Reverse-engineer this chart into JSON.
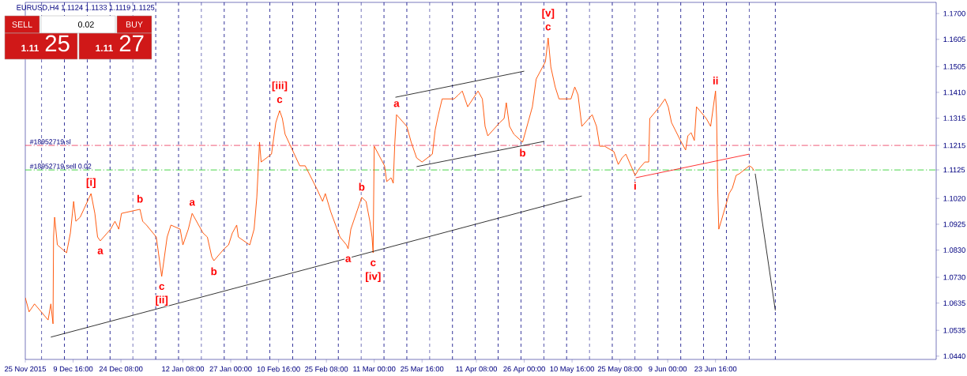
{
  "chart_data": {
    "type": "line",
    "title": "EURUSD,H4  1.1124 1.1133 1.1119 1.1125",
    "x": [
      "2015-11-25T00:00",
      "2015-11-26T04:00",
      "2015-11-27T20:00",
      "2015-12-02T00:00",
      "2015-12-02T20:00",
      "2015-12-03T12:00",
      "2015-12-03T16:00",
      "2015-12-04T00:00",
      "2015-12-04T20:00",
      "2015-12-07T16:00",
      "2015-12-08T20:00",
      "2015-12-09T20:00",
      "2015-12-10T12:00",
      "2015-12-11T20:00",
      "2015-12-15T04:00",
      "2015-12-16T08:00",
      "2015-12-17T04:00",
      "2015-12-18T00:00",
      "2015-12-21T04:00",
      "2015-12-22T12:00",
      "2015-12-23T16:00",
      "2015-12-24T12:00",
      "2015-12-30T04:00",
      "2015-12-31T00:00",
      "2016-01-01T04:00",
      "2016-01-04T04:00",
      "2016-01-04T20:00",
      "2016-01-05T20:00",
      "2016-01-06T12:00",
      "2016-01-07T12:00",
      "2016-01-08T16:00",
      "2016-01-11T12:00",
      "2016-01-12T08:00",
      "2016-01-14T00:00",
      "2016-01-15T04:00",
      "2016-01-18T12:00",
      "2016-01-19T20:00",
      "2016-01-21T04:00",
      "2016-01-21T20:00",
      "2016-01-25T00:00",
      "2016-01-26T08:00",
      "2016-01-27T12:00",
      "2016-01-28T20:00",
      "2016-01-29T08:00",
      "2016-02-01T20:00",
      "2016-02-03T04:00",
      "2016-02-04T00:00",
      "2016-02-04T20:00",
      "2016-02-05T08:00",
      "2016-02-08T12:00",
      "2016-02-09T20:00",
      "2016-02-11T00:00",
      "2016-02-11T20:00",
      "2016-02-12T16:00",
      "2016-02-15T12:00",
      "2016-02-17T04:00",
      "2016-02-18T20:00",
      "2016-02-22T12:00",
      "2016-02-24T04:00",
      "2016-02-25T00:00",
      "2016-02-26T16:00",
      "2016-02-29T12:00",
      "2016-03-02T12:00",
      "2016-03-03T00:00",
      "2016-03-03T20:00",
      "2016-03-07T04:00",
      "2016-03-08T12:00",
      "2016-03-09T16:00",
      "2016-03-10T08:00",
      "2016-03-10T16:00",
      "2016-03-11T00:00",
      "2016-03-14T04:00",
      "2016-03-14T20:00",
      "2016-03-16T04:00",
      "2016-03-16T20:00",
      "2016-03-17T08:00",
      "2016-03-17T20:00",
      "2016-03-21T00:00",
      "2016-03-22T08:00",
      "2016-03-24T00:00",
      "2016-03-25T16:00",
      "2016-03-28T20:00",
      "2016-03-29T16:00",
      "2016-03-30T16:00",
      "2016-03-31T20:00",
      "2016-04-04T12:00",
      "2016-04-05T20:00",
      "2016-04-07T00:00",
      "2016-04-08T16:00",
      "2016-04-11T20:00",
      "2016-04-13T04:00",
      "2016-04-14T00:00",
      "2016-04-14T20:00",
      "2016-04-18T12:00",
      "2016-04-19T20:00",
      "2016-04-20T12:00",
      "2016-04-21T12:00",
      "2016-04-22T20:00",
      "2016-04-25T12:00",
      "2016-04-27T04:00",
      "2016-04-28T12:00",
      "2016-04-29T16:00",
      "2016-05-02T12:00",
      "2016-05-03T08:00",
      "2016-05-04T04:00",
      "2016-05-05T12:00",
      "2016-05-06T16:00",
      "2016-05-10T08:00",
      "2016-05-11T12:00",
      "2016-05-12T12:00",
      "2016-05-13T16:00",
      "2016-05-16T20:00",
      "2016-05-18T04:00",
      "2016-05-19T04:00",
      "2016-05-20T16:00",
      "2016-05-23T12:00",
      "2016-05-24T20:00",
      "2016-05-26T00:00",
      "2016-05-27T04:00",
      "2016-05-30T00:00",
      "2016-05-31T08:00",
      "2016-06-02T00:00",
      "2016-06-03T04:00",
      "2016-06-03T12:00",
      "2016-06-06T12:00",
      "2016-06-08T04:00",
      "2016-06-09T04:00",
      "2016-06-10T04:00",
      "2016-06-13T04:00",
      "2016-06-14T12:00",
      "2016-06-15T04:00",
      "2016-06-16T04:00",
      "2016-06-17T04:00",
      "2016-06-17T20:00",
      "2016-06-20T20:00",
      "2016-06-22T04:00",
      "2016-06-23T04:00",
      "2016-06-23T16:00",
      "2016-06-24T00:00",
      "2016-06-24T08:00",
      "2016-06-24T16:00",
      "2016-06-27T04:00",
      "2016-06-27T20:00",
      "2016-06-28T20:00",
      "2016-06-30T00:00",
      "2016-07-01T00:00",
      "2016-07-04T00:00",
      "2016-07-04T20:00",
      "2016-07-05T12:00"
    ],
    "series": [
      {
        "color": "#ff5000",
        "values": [
          1.0655,
          1.0603,
          1.0632,
          1.0573,
          1.0632,
          1.0559,
          1.0878,
          1.0951,
          1.0849,
          1.082,
          1.0893,
          1.1009,
          1.0936,
          1.0951,
          1.1038,
          1.0965,
          1.0878,
          1.0864,
          1.0907,
          1.0936,
          1.0907,
          1.0965,
          1.098,
          1.0936,
          1.0922,
          1.0878,
          1.082,
          1.0733,
          1.0791,
          1.0878,
          1.0922,
          1.0907,
          1.0849,
          1.0907,
          1.0965,
          1.0893,
          1.0878,
          1.0806,
          1.0791,
          1.0835,
          1.0849,
          1.0893,
          1.0922,
          1.0878,
          1.0849,
          1.0907,
          1.1024,
          1.1227,
          1.1154,
          1.1183,
          1.1299,
          1.1343,
          1.1314,
          1.1256,
          1.1183,
          1.114,
          1.114,
          1.1053,
          1.1009,
          1.1038,
          1.0971,
          1.0878,
          1.0849,
          1.0835,
          1.0907,
          1.1024,
          1.1009,
          1.0936,
          1.0878,
          1.082,
          1.1212,
          1.114,
          1.1082,
          1.1096,
          1.1076,
          1.1227,
          1.1328,
          1.1285,
          1.1227,
          1.1169,
          1.1154,
          1.1183,
          1.127,
          1.1328,
          1.1386,
          1.1386,
          1.1401,
          1.1415,
          1.1357,
          1.1415,
          1.1386,
          1.1285,
          1.125,
          1.1299,
          1.1314,
          1.1372,
          1.1285,
          1.1256,
          1.1227,
          1.1299,
          1.1357,
          1.1459,
          1.1523,
          1.161,
          1.1503,
          1.143,
          1.1386,
          1.1386,
          1.143,
          1.1401,
          1.1285,
          1.1328,
          1.1285,
          1.1212,
          1.1212,
          1.1192,
          1.1145,
          1.1169,
          1.1183,
          1.1105,
          1.1131,
          1.1154,
          1.1154,
          1.1314,
          1.1357,
          1.1386,
          1.1357,
          1.1299,
          1.1227,
          1.1198,
          1.125,
          1.1262,
          1.1233,
          1.1357,
          1.1314,
          1.1285,
          1.1372,
          1.1415,
          1.1314,
          1.1053,
          1.0907,
          1.1009,
          1.1038,
          1.1058,
          1.1105,
          1.1111,
          1.114,
          1.1134,
          1.1122
        ]
      },
      {
        "color": "#000000",
        "x": [
          "2015-12-02T20:00",
          "2016-05-13T16:00"
        ],
        "values": [
          1.051,
          1.1029
        ]
      },
      {
        "color": "#000000",
        "x": [
          "2016-03-17T12:00",
          "2016-04-26T00:00"
        ],
        "values": [
          1.1392,
          1.1488
        ]
      },
      {
        "color": "#000000",
        "x": [
          "2016-03-24T00:00",
          "2016-05-02T04:00"
        ],
        "values": [
          1.1137,
          1.123
        ]
      },
      {
        "color": "#ff0000",
        "x": [
          "2016-05-30T04:00",
          "2016-07-04T00:00"
        ],
        "values": [
          1.1096,
          1.1183
        ]
      },
      {
        "color": "#000000",
        "x": [
          "2016-07-05T20:00",
          "2016-07-12T00:00"
        ],
        "values": [
          1.1111,
          1.0608
        ]
      }
    ],
    "xlim": [
      "2015-11-25T00:00",
      "2016-08-30T08:00"
    ],
    "ylim": [
      1.0428,
      1.1741
    ],
    "xticks": [
      {
        "value": "2015-11-25T00:00",
        "label": "25 Nov 2015"
      },
      {
        "value": "2015-12-09T16:00",
        "label": "9 Dec 16:00"
      },
      {
        "value": "2015-12-24T08:00",
        "label": "24 Dec 08:00"
      },
      {
        "value": "2016-01-12T08:00",
        "label": "12 Jan 08:00"
      },
      {
        "value": "2016-01-27T00:00",
        "label": "27 Jan 00:00"
      },
      {
        "value": "2016-02-10T16:00",
        "label": "10 Feb 16:00"
      },
      {
        "value": "2016-02-25T08:00",
        "label": "25 Feb 08:00"
      },
      {
        "value": "2016-03-11T00:00",
        "label": "11 Mar 00:00"
      },
      {
        "value": "2016-03-25T16:00",
        "label": "25 Mar 16:00"
      },
      {
        "value": "2016-04-11T08:00",
        "label": "11 Apr 08:00"
      },
      {
        "value": "2016-04-26T00:00",
        "label": "26 Apr 00:00"
      },
      {
        "value": "2016-05-10T16:00",
        "label": "10 May 16:00"
      },
      {
        "value": "2016-05-25T08:00",
        "label": "25 May 08:00"
      },
      {
        "value": "2016-06-09T00:00",
        "label": "9 Jun 00:00"
      },
      {
        "value": "2016-06-23T16:00",
        "label": "23 Jun 16:00"
      }
    ],
    "yticks": [
      {
        "value": 1.044,
        "label": "1.0440"
      },
      {
        "value": 1.0535,
        "label": "1.0535"
      },
      {
        "value": 1.0635,
        "label": "1.0635"
      },
      {
        "value": 1.073,
        "label": "1.0730"
      },
      {
        "value": 1.083,
        "label": "1.0830"
      },
      {
        "value": 1.0925,
        "label": "1.0925"
      },
      {
        "value": 1.102,
        "label": "1.1020"
      },
      {
        "value": 1.1125,
        "label": "1.1125"
      },
      {
        "value": 1.1215,
        "label": "1.1215"
      },
      {
        "value": 1.1315,
        "label": "1.1315"
      },
      {
        "value": 1.141,
        "label": "1.1410"
      },
      {
        "value": 1.1505,
        "label": "1.1505"
      },
      {
        "value": 1.1605,
        "label": "1.1605"
      },
      {
        "value": 1.17,
        "label": "1.1700"
      }
    ],
    "ref_lines": [
      {
        "axis": "y",
        "value": 1.1215,
        "label": "#18952719 sl",
        "color": "#e8103a",
        "line_style": "dashed"
      },
      {
        "axis": "y",
        "value": 1.1125,
        "label": "#18952719 sell 0.02",
        "color": "#22cc22",
        "line_style": "dashed"
      },
      {
        "axis": "x",
        "value": "2015-11-30T00:00",
        "color": "#000080",
        "line_style": "dashed"
      },
      {
        "axis": "x",
        "value": "2015-12-07T00:00",
        "color": "#000080",
        "line_style": "dashed"
      },
      {
        "axis": "x",
        "value": "2015-12-14T00:00",
        "color": "#000080",
        "line_style": "dashed"
      },
      {
        "axis": "x",
        "value": "2015-12-21T00:00",
        "color": "#000080",
        "line_style": "dashed"
      },
      {
        "axis": "x",
        "value": "2015-12-28T00:00",
        "color": "#000080",
        "line_style": "dashed"
      },
      {
        "axis": "x",
        "value": "2016-01-04T00:00",
        "color": "#000080",
        "line_style": "dashed"
      },
      {
        "axis": "x",
        "value": "2016-01-11T00:00",
        "color": "#000080",
        "line_style": "dashed"
      },
      {
        "axis": "x",
        "value": "2016-01-18T00:00",
        "color": "#000080",
        "line_style": "dashed"
      },
      {
        "axis": "x",
        "value": "2016-01-25T00:00",
        "color": "#000080",
        "line_style": "dashed"
      },
      {
        "axis": "x",
        "value": "2016-02-01T00:00",
        "color": "#000080",
        "line_style": "dashed"
      },
      {
        "axis": "x",
        "value": "2016-02-08T00:00",
        "color": "#000080",
        "line_style": "dashed"
      },
      {
        "axis": "x",
        "value": "2016-02-15T00:00",
        "color": "#000080",
        "line_style": "dashed"
      },
      {
        "axis": "x",
        "value": "2016-02-22T00:00",
        "color": "#000080",
        "line_style": "dashed"
      },
      {
        "axis": "x",
        "value": "2016-02-29T00:00",
        "color": "#000080",
        "line_style": "dashed"
      },
      {
        "axis": "x",
        "value": "2016-03-07T00:00",
        "color": "#000080",
        "line_style": "dashed"
      },
      {
        "axis": "x",
        "value": "2016-03-14T00:00",
        "color": "#000080",
        "line_style": "dashed"
      },
      {
        "axis": "x",
        "value": "2016-03-21T00:00",
        "color": "#000080",
        "line_style": "dashed"
      },
      {
        "axis": "x",
        "value": "2016-03-28T00:00",
        "color": "#000080",
        "line_style": "dashed"
      },
      {
        "axis": "x",
        "value": "2016-04-04T00:00",
        "color": "#000080",
        "line_style": "dashed"
      },
      {
        "axis": "x",
        "value": "2016-04-11T00:00",
        "color": "#000080",
        "line_style": "dashed"
      },
      {
        "axis": "x",
        "value": "2016-04-18T00:00",
        "color": "#000080",
        "line_style": "dashed"
      },
      {
        "axis": "x",
        "value": "2016-04-25T00:00",
        "color": "#000080",
        "line_style": "dashed"
      },
      {
        "axis": "x",
        "value": "2016-05-02T00:00",
        "color": "#000080",
        "line_style": "dashed"
      },
      {
        "axis": "x",
        "value": "2016-05-09T00:00",
        "color": "#000080",
        "line_style": "dashed"
      },
      {
        "axis": "x",
        "value": "2016-05-16T00:00",
        "color": "#000080",
        "line_style": "dashed"
      },
      {
        "axis": "x",
        "value": "2016-05-23T00:00",
        "color": "#000080",
        "line_style": "dashed"
      },
      {
        "axis": "x",
        "value": "2016-05-30T00:00",
        "color": "#000080",
        "line_style": "dashed"
      },
      {
        "axis": "x",
        "value": "2016-06-06T00:00",
        "color": "#000080",
        "line_style": "dashed"
      },
      {
        "axis": "x",
        "value": "2016-06-13T00:00",
        "color": "#000080",
        "line_style": "dashed"
      },
      {
        "axis": "x",
        "value": "2016-06-20T00:00",
        "color": "#000080",
        "line_style": "dashed"
      },
      {
        "axis": "x",
        "value": "2016-06-27T00:00",
        "color": "#000080",
        "line_style": "dashed"
      },
      {
        "axis": "x",
        "value": "2016-07-04T00:00",
        "color": "#000080",
        "line_style": "dashed"
      },
      {
        "axis": "x",
        "value": "2016-07-12T00:00",
        "color": "#000080",
        "line_style": "dashed"
      }
    ],
    "annotations": [
      "SELL",
      "0.02",
      "BUY",
      "1.11",
      "25",
      "1.11",
      "27",
      {
        "text": "[i]",
        "x": "2015-12-15T04:00",
        "y": 1.1038
      },
      {
        "text": "a",
        "x": "2015-12-18T00:00",
        "y": 1.0864
      },
      {
        "text": "b",
        "x": "2015-12-30T04:00",
        "y": 1.098
      },
      {
        "text": "c",
        "x": "2016-01-05T20:00",
        "y": 1.0733
      },
      {
        "text": "[ii]",
        "x": "2016-01-05T20:00",
        "y": 1.0733
      },
      {
        "text": "a",
        "x": "2016-01-15T04:00",
        "y": 1.0965
      },
      {
        "text": "b",
        "x": "2016-01-21T20:00",
        "y": 1.0791
      },
      {
        "text": "c",
        "x": "2016-02-11T00:00",
        "y": 1.1343
      },
      {
        "text": "[iii]",
        "x": "2016-02-11T00:00",
        "y": 1.1343
      },
      {
        "text": "a",
        "x": "2016-03-03T00:00",
        "y": 1.0835
      },
      {
        "text": "b",
        "x": "2016-03-07T04:00",
        "y": 1.1024
      },
      {
        "text": "c",
        "x": "2016-03-10T16:00",
        "y": 1.082
      },
      {
        "text": "[iv]",
        "x": "2016-03-10T16:00",
        "y": 1.082
      },
      {
        "text": "a",
        "x": "2016-03-17T20:00",
        "y": 1.1328
      },
      {
        "text": "b",
        "x": "2016-04-25T12:00",
        "y": 1.1227
      },
      {
        "text": "c",
        "x": "2016-05-03T08:00",
        "y": 1.161
      },
      {
        "text": "[v]",
        "x": "2016-05-03T08:00",
        "y": 1.161
      },
      {
        "text": "i",
        "x": "2016-05-30T00:00",
        "y": 1.1105
      },
      {
        "text": "ii",
        "x": "2016-06-23T16:00",
        "y": 1.1415
      }
    ]
  }
}
